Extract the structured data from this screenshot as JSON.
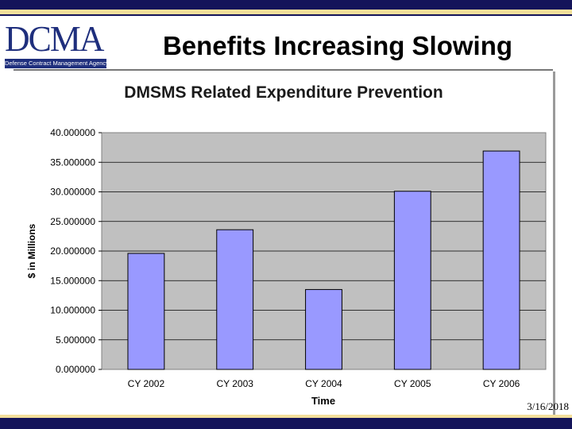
{
  "header": {
    "logo_text": "DCMA",
    "logo_tagline": "Defense Contract Management Agency",
    "title": "Benefits Increasing Slowing"
  },
  "footer": {
    "date": "3/16/2018"
  },
  "colors": {
    "top_band": "#14145a",
    "accent_stripe": "#f3df9b",
    "plot_background": "#c0c0c0",
    "bar_fill": "#9999ff",
    "bar_stroke": "#000000"
  },
  "chart_data": {
    "type": "bar",
    "title": "DMSMS Related Expenditure Prevention",
    "xlabel": "Time",
    "ylabel": "$ in Millions",
    "categories": [
      "CY 2002",
      "CY 2003",
      "CY 2004",
      "CY 2005",
      "CY 2006"
    ],
    "values": [
      19.6,
      23.6,
      13.5,
      30.1,
      36.9
    ],
    "ylim": [
      0,
      40
    ],
    "yticks": [
      "0.000000",
      "5.000000",
      "10.000000",
      "15.000000",
      "20.000000",
      "25.000000",
      "30.000000",
      "35.000000",
      "40.000000"
    ],
    "grid": true,
    "legend": "none"
  }
}
